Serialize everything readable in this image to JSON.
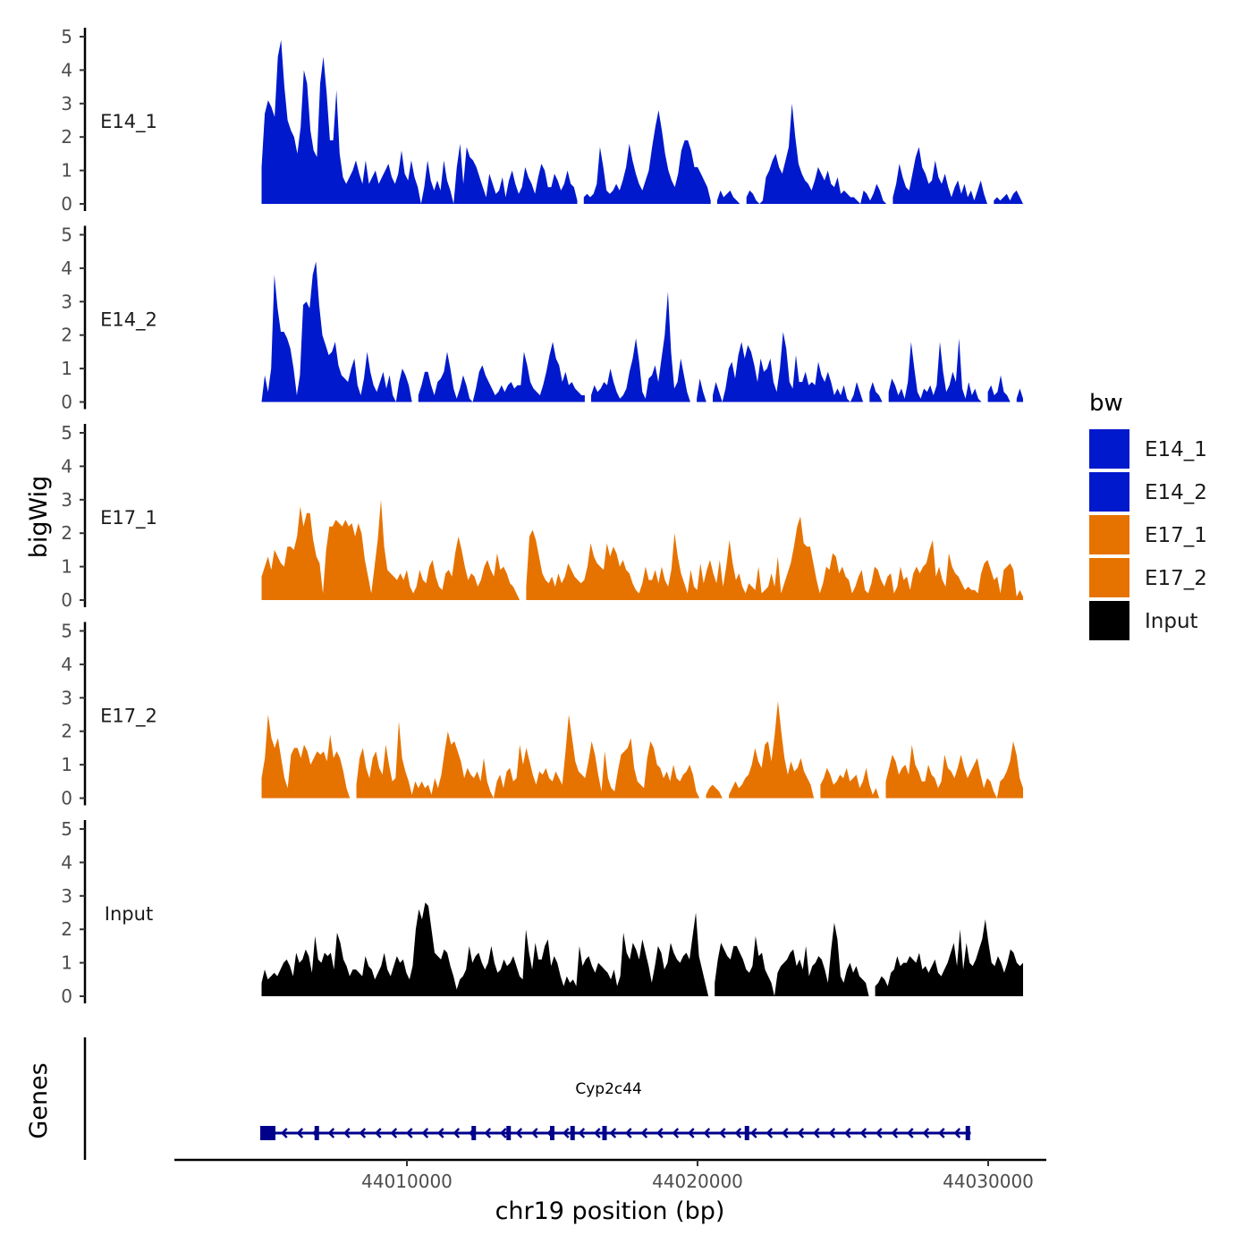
{
  "chart_data": {
    "type": "area",
    "ylabel": "bigWig",
    "xlabel": "chr19 position (bp)",
    "ylim": [
      0,
      5
    ],
    "yticks": [
      0,
      1,
      2,
      3,
      4,
      5
    ],
    "xlim": [
      44002000,
      44032000
    ],
    "xticks": [
      44010000,
      44020000,
      44030000
    ],
    "xtick_labels": [
      "44010000",
      "44020000",
      "44030000"
    ],
    "x_start": 44005000,
    "x_end": 44031200,
    "tracks": [
      {
        "name": "E14_1",
        "color": "#0019cc",
        "values": [
          1.1,
          2.7,
          3.1,
          2.9,
          2.6,
          4.4,
          4.9,
          3.5,
          2.5,
          2.2,
          2.0,
          1.5,
          2.3,
          4.0,
          3.6,
          2.2,
          1.6,
          1.4,
          3.6,
          4.4,
          3.3,
          1.9,
          1.9,
          3.4,
          1.5,
          0.8,
          0.6,
          0.8,
          1.0,
          1.3,
          0.9,
          0.6,
          1.3,
          0.6,
          0.8,
          1.0,
          0.6,
          0.8,
          1.0,
          1.2,
          0.8,
          0.6,
          0.9,
          1.6,
          0.9,
          0.7,
          1.3,
          0.8,
          0.5,
          0,
          0.5,
          1.3,
          0.7,
          0.4,
          0.7,
          0.4,
          1.3,
          0.7,
          0.4,
          0,
          1.1,
          1.8,
          0.6,
          1.7,
          1.4,
          1.3,
          1.1,
          0.8,
          0.5,
          0.2,
          0.9,
          0.6,
          0.3,
          0.4,
          0.8,
          0.2,
          0.7,
          1.0,
          0.6,
          0.3,
          0.5,
          1.1,
          0.8,
          0.6,
          0.3,
          0.8,
          1.2,
          1.0,
          0.5,
          0.5,
          0.9,
          0.7,
          0.4,
          0.6,
          1.0,
          0.6,
          0.5,
          0.1,
          null,
          0.2,
          0.3,
          0.2,
          0.3,
          0.6,
          1.7,
          1.1,
          0.4,
          0.3,
          0.4,
          0.6,
          0.4,
          0.7,
          1.1,
          1.8,
          1.3,
          0.9,
          0.6,
          0.4,
          0.7,
          1.0,
          1.7,
          2.3,
          2.8,
          2.2,
          1.5,
          1.0,
          0.7,
          0.5,
          0.9,
          1.6,
          1.9,
          1.9,
          1.6,
          1.1,
          1.1,
          0.9,
          0.7,
          0.5,
          0.1,
          null,
          0.1,
          0.4,
          0.2,
          0.3,
          0.4,
          0.2,
          0.1,
          0,
          null,
          0.2,
          0.4,
          0.3,
          0.1,
          0,
          0.1,
          0.8,
          1.0,
          1.3,
          1.5,
          1.1,
          0.9,
          1.3,
          1.7,
          3.0,
          2.0,
          1.2,
          0.9,
          0.7,
          0.6,
          0.4,
          0.7,
          1.1,
          0.9,
          0.7,
          1.0,
          0.6,
          0.5,
          0.8,
          0.3,
          0.4,
          0.3,
          0.2,
          0.2,
          0.1,
          0,
          0.4,
          0.3,
          0.1,
          0.3,
          0.6,
          0.4,
          0.1,
          0,
          null,
          0.2,
          0.6,
          1.2,
          0.8,
          0.5,
          0.4,
          0.9,
          1.4,
          1.7,
          1.1,
          0.9,
          0.6,
          0.7,
          1.3,
          0.8,
          0.6,
          0.9,
          0.5,
          0.2,
          0.5,
          0.7,
          0.3,
          0.6,
          0.2,
          0.4,
          0.1,
          0.4,
          0.7,
          0.3,
          0,
          null,
          0.1,
          0.2,
          0.1,
          0.2,
          0.3,
          0.1,
          0.3,
          0.4,
          0.2,
          0
        ]
      },
      {
        "name": "E14_2",
        "color": "#0019cc",
        "values": [
          0,
          0.8,
          0.3,
          1.0,
          3.8,
          2.8,
          2.1,
          2.1,
          1.9,
          1.6,
          1.0,
          0.2,
          0.8,
          2.9,
          3.0,
          2.8,
          3.8,
          4.2,
          2.9,
          2.0,
          1.7,
          1.4,
          1.5,
          1.8,
          1.1,
          0.8,
          0.7,
          0.6,
          1.0,
          1.3,
          0.5,
          0.2,
          0.7,
          1.5,
          0.9,
          0.5,
          0.3,
          0.6,
          0.9,
          0.4,
          0.8,
          0.2,
          0,
          0.6,
          1.0,
          0.8,
          0.5,
          0,
          null,
          0.2,
          0.5,
          0.9,
          0.9,
          0.5,
          0.2,
          0.6,
          0.7,
          0.9,
          1.5,
          1.0,
          0.4,
          0.1,
          0.4,
          0.8,
          0.5,
          0.1,
          0,
          0.4,
          0.9,
          1.1,
          0.8,
          0.6,
          0.4,
          0.2,
          0.3,
          0.5,
          0.3,
          0.5,
          0.6,
          0.4,
          0.5,
          0.5,
          1.5,
          1.1,
          0.6,
          0.4,
          0.3,
          0.2,
          0.5,
          0.9,
          1.4,
          1.8,
          1.3,
          1.1,
          0.6,
          0.9,
          0.5,
          0.6,
          0.4,
          0.3,
          0.2,
          0.2,
          null,
          0.2,
          0.5,
          0.3,
          0.4,
          0.6,
          0.5,
          1.0,
          0.6,
          0.3,
          0.1,
          0.2,
          0.4,
          0.9,
          1.3,
          1.9,
          1.2,
          0.3,
          0.1,
          0.7,
          0.8,
          1.1,
          0.6,
          1.3,
          2.0,
          3.3,
          1.5,
          0.4,
          0.6,
          1.3,
          0.8,
          0.3,
          0,
          null,
          0.1,
          0.7,
          0.3,
          0,
          null,
          0.2,
          0.6,
          0.3,
          0,
          0.4,
          1.0,
          1.2,
          0.7,
          1.4,
          1.8,
          1.3,
          1.7,
          1.5,
          1.1,
          0.6,
          1.3,
          0.9,
          1.0,
          1.3,
          0.6,
          0.3,
          1.0,
          2.1,
          1.6,
          0.6,
          0.4,
          1.4,
          0.6,
          0.6,
          0.9,
          0.5,
          0.6,
          0.5,
          1.2,
          0.8,
          0.6,
          0.9,
          0.6,
          0.2,
          0.4,
          0.2,
          0.5,
          0.1,
          0,
          0.2,
          0.6,
          0.3,
          0,
          null,
          0.3,
          0.6,
          0.3,
          0.2,
          0,
          null,
          0.3,
          0.7,
          0.5,
          0.2,
          0.4,
          0.1,
          0.6,
          1.8,
          1.0,
          0.3,
          0.1,
          0.4,
          0.3,
          0.5,
          0.2,
          0.5,
          1.8,
          0.9,
          0.3,
          0.5,
          0.9,
          0.6,
          1.9,
          0.4,
          0.1,
          0.6,
          0.2,
          0.4,
          0.1,
          0,
          null,
          0.3,
          0.5,
          0.2,
          0.3,
          0.8,
          0.3,
          0.2,
          0,
          null,
          0.1,
          0.4,
          0.1
        ]
      },
      {
        "name": "E17_1",
        "color": "#e67300",
        "values": [
          0.7,
          1.0,
          1.3,
          0.9,
          1.5,
          1.3,
          1.1,
          1.0,
          1.6,
          1.6,
          1.5,
          1.9,
          2.8,
          2.2,
          2.6,
          2.6,
          1.8,
          1.3,
          1.1,
          0.2,
          1.5,
          2.2,
          2.2,
          2.4,
          2.3,
          2.2,
          2.4,
          2.2,
          2.3,
          1.9,
          2.3,
          2.0,
          1.2,
          0.7,
          0.2,
          1.0,
          1.8,
          3.0,
          1.6,
          0.9,
          0.8,
          0.7,
          0.6,
          0.8,
          0.6,
          0.9,
          0.4,
          0.2,
          0.4,
          0.9,
          0.6,
          0.5,
          1.0,
          1.2,
          0.7,
          0.4,
          0.3,
          0.8,
          0.9,
          0.7,
          1.4,
          1.9,
          1.5,
          1.0,
          0.6,
          0.8,
          0.7,
          0.4,
          0.6,
          1.0,
          1.2,
          0.9,
          0.7,
          1.4,
          0.9,
          1.0,
          0.8,
          0.5,
          0.4,
          0.2,
          0,
          null,
          0.4,
          1.9,
          2.1,
          1.8,
          1.3,
          0.8,
          0.6,
          0.5,
          0.7,
          0.4,
          0.8,
          0.5,
          0.7,
          1.1,
          0.9,
          0.7,
          0.6,
          0.5,
          0.6,
          1.0,
          1.7,
          1.3,
          1.1,
          1.0,
          0.9,
          1.7,
          1.3,
          1.6,
          1.4,
          1.0,
          1.2,
          0.9,
          0.8,
          0.5,
          0.3,
          0.2,
          0.5,
          1.0,
          0.6,
          0.6,
          0.9,
          0.5,
          1.0,
          0.6,
          0.4,
          0.9,
          2.0,
          1.3,
          0.8,
          0.5,
          0.2,
          0.9,
          0.4,
          0.3,
          1.1,
          0.5,
          0.9,
          1.2,
          0.8,
          0.5,
          1.2,
          0.4,
          1.0,
          1.8,
          1.1,
          0.6,
          0.8,
          0.4,
          0.2,
          0.5,
          0.4,
          0.3,
          1.0,
          0.2,
          0.3,
          0.4,
          0.8,
          0.4,
          1.3,
          0.2,
          0.5,
          0.8,
          1.1,
          1.6,
          2.2,
          2.5,
          1.7,
          1.6,
          1.6,
          1.1,
          0.6,
          0.2,
          0.5,
          1.0,
          0.9,
          1.4,
          1.3,
          0.8,
          1.0,
          0.7,
          0.6,
          0.2,
          0.4,
          0.7,
          0.9,
          0.3,
          0.2,
          0.5,
          1.0,
          0.9,
          0.6,
          0.4,
          0.7,
          0.8,
          0.2,
          0.4,
          1.0,
          0.6,
          0.7,
          0.3,
          0.8,
          1.0,
          0.8,
          1.0,
          1.1,
          1.5,
          1.8,
          0.7,
          1.0,
          0.6,
          0.4,
          1.4,
          1.0,
          0.8,
          0.7,
          0.5,
          0.3,
          0.4,
          0.3,
          0.3,
          0.2,
          0.8,
          1.1,
          1.2,
          0.9,
          0.6,
          0.7,
          0.2,
          0.9,
          1.0,
          1.1,
          0.9,
          0.1,
          0.3,
          0.1
        ]
      },
      {
        "name": "E17_2",
        "color": "#e67300",
        "values": [
          0.6,
          1.2,
          2.5,
          1.8,
          1.5,
          1.8,
          1.2,
          0.6,
          0.3,
          1.3,
          1.5,
          1.5,
          1.2,
          1.6,
          1.4,
          1.0,
          1.2,
          1.4,
          1.3,
          1.4,
          1.1,
          1.9,
          1.2,
          1.4,
          1.2,
          0.8,
          0.3,
          0,
          null,
          0.4,
          1.2,
          1.5,
          0.9,
          0.6,
          1.2,
          1.4,
          0.9,
          0.7,
          1.6,
          1.0,
          0.5,
          0.6,
          2.3,
          1.2,
          0.8,
          0.5,
          0.1,
          0.5,
          0.3,
          0.5,
          0.3,
          0.4,
          0.1,
          0.6,
          0.3,
          0.7,
          1.4,
          2.0,
          1.6,
          1.7,
          1.4,
          1.1,
          0.6,
          0.9,
          0.7,
          0.6,
          0.8,
          0.5,
          1.2,
          0.5,
          0.2,
          0,
          0.5,
          0.7,
          0.3,
          0.8,
          0.9,
          0.5,
          0.6,
          1.6,
          1.0,
          1.5,
          1.1,
          0.7,
          0.4,
          0.8,
          0.7,
          0.9,
          0.6,
          0.5,
          0.8,
          0.6,
          0.4,
          1.4,
          2.5,
          1.8,
          1.1,
          0.8,
          0.7,
          0.6,
          1.1,
          1.7,
          1.3,
          0.7,
          0.2,
          1.4,
          0.6,
          0.3,
          0.2,
          0.8,
          1.3,
          1.4,
          1.5,
          1.8,
          0.9,
          0.5,
          0.4,
          0.3,
          1.2,
          1.7,
          1.5,
          1.0,
          0.9,
          0.6,
          0.8,
          0.5,
          1.0,
          0.6,
          0.5,
          0.7,
          0.8,
          1.0,
          0.7,
          0.2,
          0,
          null,
          0.1,
          0.3,
          0.4,
          0.3,
          0.2,
          0,
          null,
          0.1,
          0.3,
          0.5,
          0.3,
          0.4,
          0.6,
          0.7,
          1.0,
          1.5,
          1.1,
          0.9,
          1.6,
          1.7,
          1.1,
          1.9,
          2.9,
          2.0,
          1.2,
          0.7,
          1.1,
          0.8,
          0.9,
          1.2,
          0.8,
          0.6,
          0.4,
          0,
          null,
          0.4,
          0.6,
          0.9,
          0.7,
          0.4,
          0.5,
          0.7,
          0.6,
          0.9,
          0.5,
          0.6,
          0.7,
          0.3,
          0.5,
          0.9,
          0.4,
          0.1,
          0.3,
          0,
          null,
          0.5,
          0.9,
          1.3,
          1.1,
          0.7,
          0.9,
          1.0,
          0.7,
          1.6,
          1.0,
          0.8,
          0.5,
          0.5,
          1.0,
          0.7,
          0.6,
          0.3,
          0.5,
          1.3,
          0.9,
          0.8,
          0.6,
          0.9,
          1.3,
          0.9,
          0.6,
          0.8,
          1.0,
          1.2,
          0.7,
          0.3,
          0.6,
          0.5,
          0.2,
          0,
          0.5,
          0.6,
          0.8,
          1.1,
          1.7,
          1.3,
          0.6,
          0.3
        ]
      },
      {
        "name": "Input",
        "color": "#000000",
        "values": [
          0.4,
          0.8,
          0.5,
          0.6,
          0.7,
          0.6,
          0.8,
          1.0,
          1.1,
          0.9,
          0.6,
          1.3,
          1.0,
          1.1,
          1.4,
          1.2,
          0.7,
          1.8,
          1.1,
          1.0,
          1.3,
          1.2,
          1.3,
          0.8,
          1.9,
          1.6,
          1.1,
          0.9,
          0.6,
          0.8,
          0.8,
          0.7,
          0.6,
          1.2,
          0.9,
          0.8,
          0.5,
          0.7,
          0.9,
          1.3,
          0.8,
          0.6,
          0.9,
          1.2,
          1.0,
          1.1,
          0.7,
          0.5,
          0.9,
          2.0,
          2.6,
          2.3,
          2.8,
          2.7,
          2.0,
          1.3,
          1.2,
          1.1,
          1.4,
          1.3,
          0.9,
          0.6,
          0.2,
          0.5,
          0.6,
          0.8,
          1.5,
          1.0,
          1.2,
          1.3,
          1.0,
          0.8,
          1.0,
          1.5,
          1.0,
          0.7,
          0.8,
          1.1,
          0.9,
          1.0,
          1.2,
          0.9,
          0.6,
          0.5,
          2.0,
          1.3,
          0.8,
          1.6,
          1.1,
          1.1,
          1.5,
          1.7,
          0.9,
          1.2,
          1.0,
          0.6,
          0.3,
          0.6,
          0.4,
          0.5,
          0.3,
          1.5,
          0.9,
          1.1,
          1.2,
          0.9,
          0.7,
          1.0,
          0.9,
          0.8,
          0.7,
          0.5,
          0.8,
          0.3,
          0.6,
          1.9,
          1.3,
          1.1,
          1.6,
          1.4,
          1.1,
          1.7,
          1.3,
          0.9,
          0.4,
          0.9,
          1.5,
          1.3,
          0.8,
          1.0,
          1.6,
          1.3,
          1.1,
          1.0,
          1.2,
          1.3,
          1.1,
          1.8,
          2.5,
          1.2,
          0.8,
          0.4,
          0,
          null,
          0.4,
          1.1,
          1.6,
          1.4,
          1.2,
          1.1,
          1.5,
          1.5,
          1.3,
          1.1,
          0.8,
          0.7,
          0.9,
          1.8,
          1.2,
          1.3,
          0.8,
          0.6,
          0.4,
          0,
          0.7,
          0.9,
          1.0,
          1.1,
          1.3,
          1.4,
          0.9,
          1.1,
          0.8,
          1.5,
          0.6,
          0.9,
          1.0,
          1.2,
          1.1,
          0.8,
          0.4,
          1.4,
          2.2,
          1.7,
          0.6,
          0.4,
          0.8,
          1.0,
          0.7,
          0.9,
          0.6,
          0.5,
          0.4,
          0,
          null,
          0.3,
          0.4,
          0.6,
          0.5,
          0.3,
          0.7,
          0.8,
          1.2,
          0.9,
          1.0,
          1.0,
          1.2,
          1.1,
          1.0,
          1.3,
          0.8,
          0.9,
          0.7,
          0.9,
          1.1,
          0.7,
          0.6,
          0.8,
          1.0,
          1.3,
          1.6,
          0.9,
          2.0,
          0.8,
          1.6,
          1.0,
          0.9,
          1.1,
          1.4,
          1.7,
          2.3,
          1.6,
          1.0,
          0.9,
          1.2,
          1.0,
          0.7,
          1.0,
          1.4,
          1.3,
          1.0,
          0.9,
          1.0
        ]
      }
    ],
    "gene": {
      "name": "Cyp2c44",
      "strand": "-",
      "start": 44005100,
      "end": 44029400,
      "color": "#00008b",
      "exons": [
        44005200,
        44005400,
        44006900,
        44012300,
        44013500,
        44015000,
        44015700,
        44016800,
        44021700,
        44029300
      ]
    },
    "legend": {
      "title": "bw",
      "entries": [
        {
          "label": "E14_1",
          "color": "#0019cc"
        },
        {
          "label": "E14_2",
          "color": "#0019cc"
        },
        {
          "label": "E17_1",
          "color": "#e67300"
        },
        {
          "label": "E17_2",
          "color": "#e67300"
        },
        {
          "label": "Input",
          "color": "#000000"
        }
      ],
      "position": "right"
    },
    "genes_panel_label": "Genes"
  }
}
